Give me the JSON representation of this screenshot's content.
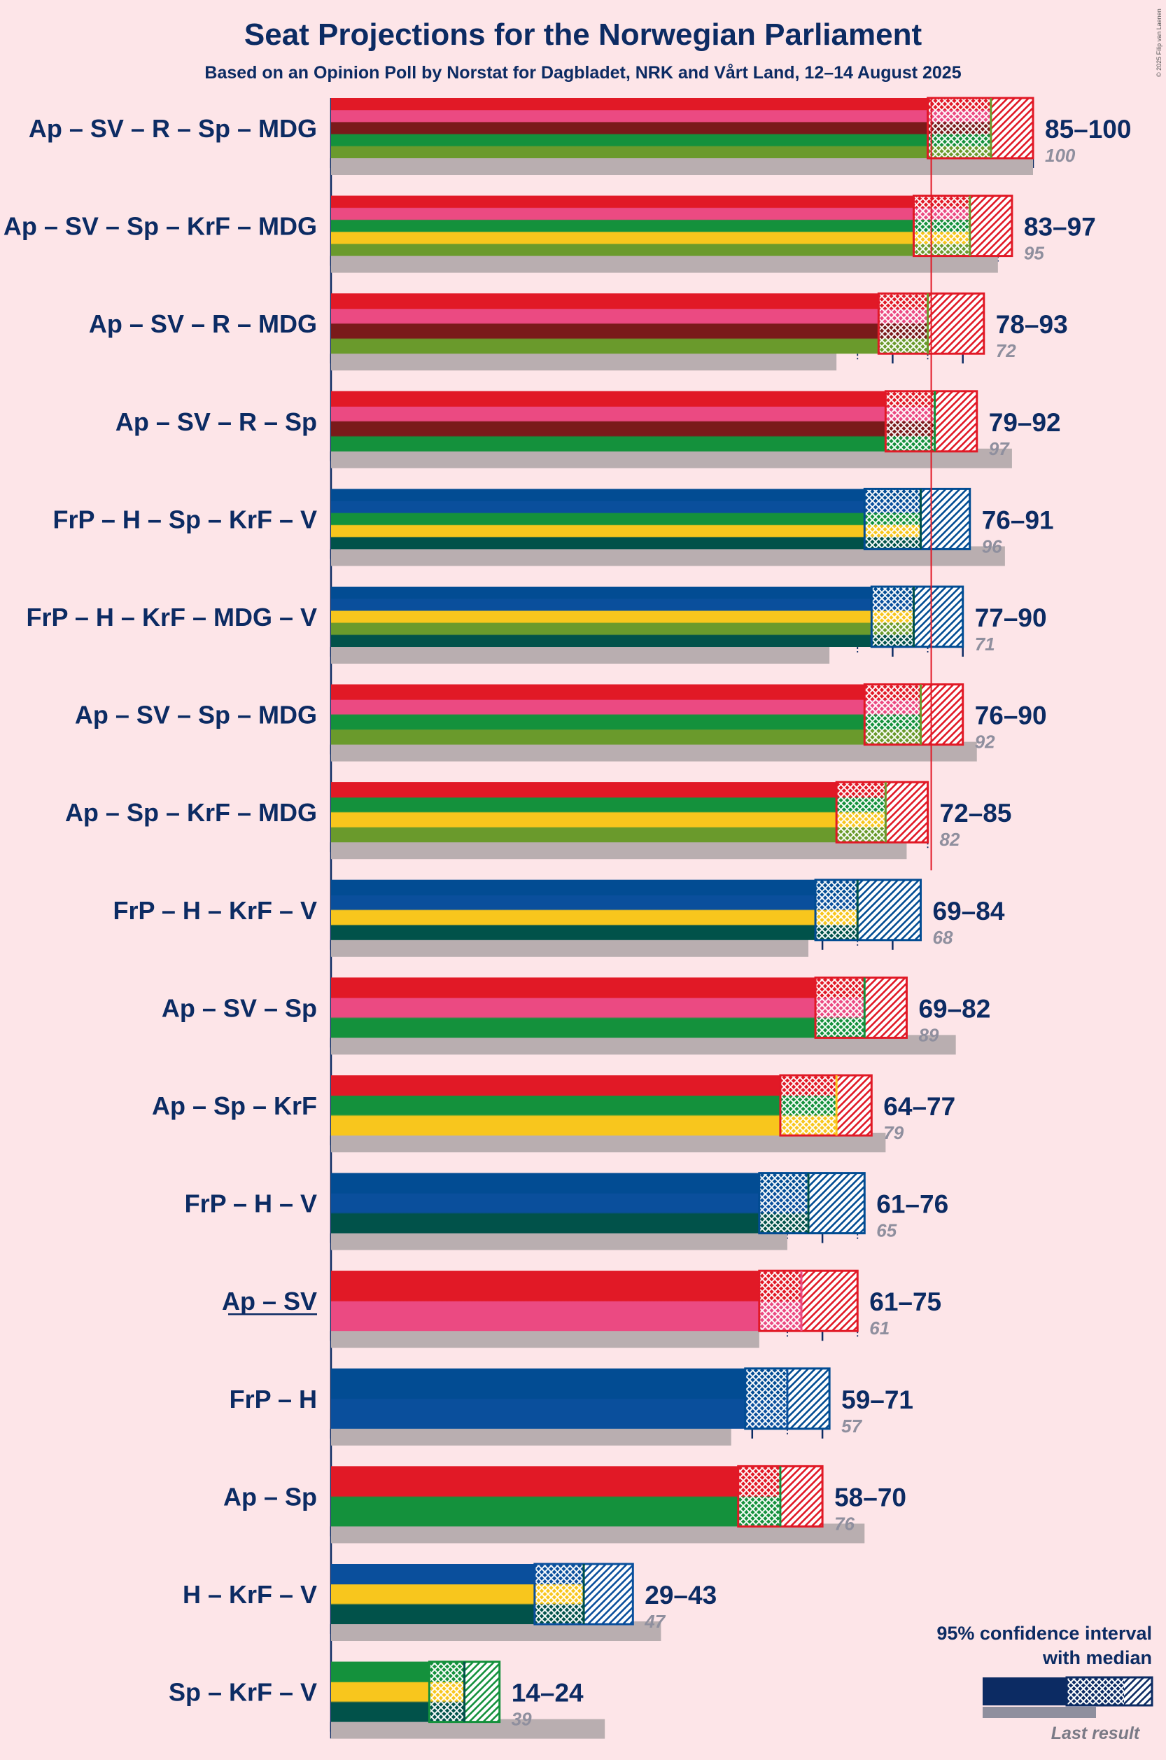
{
  "chart_data": {
    "type": "bar",
    "title": "Seat Projections for the Norwegian Parliament",
    "subtitle": "Based on an Opinion Poll by Norstat for Dagbladet, NRK and Vårt Land, 12–14 August 2025",
    "copyright": "© 2025 Filip van Laenen",
    "majority": 85,
    "xlim": [
      0,
      100
    ],
    "tick_step": 5,
    "party_colors": {
      "Ap": "#e11926",
      "SV": "#eb4a82",
      "R": "#7a1a1a",
      "Sp": "#14913c",
      "MDG": "#6a9a2c",
      "KrF": "#f8c61d",
      "FrP": "#024c93",
      "H": "#0a4f9c",
      "V": "#01524a"
    },
    "coalitions": [
      {
        "label": "Ap – SV – R – Sp – MDG",
        "parties": [
          "Ap",
          "SV",
          "R",
          "Sp",
          "MDG"
        ],
        "low": 85,
        "median": 94,
        "high": 100,
        "range": "85–100",
        "last": 100,
        "last_label": "100",
        "underline": false
      },
      {
        "label": "Ap – SV – Sp – KrF – MDG",
        "parties": [
          "Ap",
          "SV",
          "Sp",
          "KrF",
          "MDG"
        ],
        "low": 83,
        "median": 91,
        "high": 97,
        "range": "83–97",
        "last": 95,
        "last_label": "95",
        "underline": false
      },
      {
        "label": "Ap – SV – R – MDG",
        "parties": [
          "Ap",
          "SV",
          "R",
          "MDG"
        ],
        "low": 78,
        "median": 85,
        "high": 93,
        "range": "78–93",
        "last": 72,
        "last_label": "72",
        "underline": false
      },
      {
        "label": "Ap – SV – R – Sp",
        "parties": [
          "Ap",
          "SV",
          "R",
          "Sp"
        ],
        "low": 79,
        "median": 86,
        "high": 92,
        "range": "79–92",
        "last": 97,
        "last_label": "97",
        "underline": false
      },
      {
        "label": "FrP – H – Sp – KrF – V",
        "parties": [
          "FrP",
          "H",
          "Sp",
          "KrF",
          "V"
        ],
        "low": 76,
        "median": 84,
        "high": 91,
        "range": "76–91",
        "last": 96,
        "last_label": "96",
        "underline": false
      },
      {
        "label": "FrP – H – KrF – MDG – V",
        "parties": [
          "FrP",
          "H",
          "KrF",
          "MDG",
          "V"
        ],
        "low": 77,
        "median": 83,
        "high": 90,
        "range": "77–90",
        "last": 71,
        "last_label": "71",
        "underline": false
      },
      {
        "label": "Ap – SV – Sp – MDG",
        "parties": [
          "Ap",
          "SV",
          "Sp",
          "MDG"
        ],
        "low": 76,
        "median": 84,
        "high": 90,
        "range": "76–90",
        "last": 92,
        "last_label": "92",
        "underline": false
      },
      {
        "label": "Ap – Sp – KrF – MDG",
        "parties": [
          "Ap",
          "Sp",
          "KrF",
          "MDG"
        ],
        "low": 72,
        "median": 79,
        "high": 85,
        "range": "72–85",
        "last": 82,
        "last_label": "82",
        "underline": false
      },
      {
        "label": "FrP – H – KrF – V",
        "parties": [
          "FrP",
          "H",
          "KrF",
          "V"
        ],
        "low": 69,
        "median": 75,
        "high": 84,
        "range": "69–84",
        "last": 68,
        "last_label": "68",
        "underline": false
      },
      {
        "label": "Ap – SV – Sp",
        "parties": [
          "Ap",
          "SV",
          "Sp"
        ],
        "low": 69,
        "median": 76,
        "high": 82,
        "range": "69–82",
        "last": 89,
        "last_label": "89",
        "underline": false
      },
      {
        "label": "Ap – Sp – KrF",
        "parties": [
          "Ap",
          "Sp",
          "KrF"
        ],
        "low": 64,
        "median": 72,
        "high": 77,
        "range": "64–77",
        "last": 79,
        "last_label": "79",
        "underline": false
      },
      {
        "label": "FrP – H – V",
        "parties": [
          "FrP",
          "H",
          "V"
        ],
        "low": 61,
        "median": 68,
        "high": 76,
        "range": "61–76",
        "last": 65,
        "last_label": "65",
        "underline": false
      },
      {
        "label": "Ap – SV",
        "parties": [
          "Ap",
          "SV"
        ],
        "low": 61,
        "median": 67,
        "high": 75,
        "range": "61–75",
        "last": 61,
        "last_label": "61",
        "underline": true
      },
      {
        "label": "FrP – H",
        "parties": [
          "FrP",
          "H"
        ],
        "low": 59,
        "median": 65,
        "high": 71,
        "range": "59–71",
        "last": 57,
        "last_label": "57",
        "underline": false
      },
      {
        "label": "Ap – Sp",
        "parties": [
          "Ap",
          "Sp"
        ],
        "low": 58,
        "median": 64,
        "high": 70,
        "range": "58–70",
        "last": 76,
        "last_label": "76",
        "underline": false
      },
      {
        "label": "H – KrF – V",
        "parties": [
          "H",
          "KrF",
          "V"
        ],
        "low": 29,
        "median": 36,
        "high": 43,
        "range": "29–43",
        "last": 47,
        "last_label": "47",
        "underline": false
      },
      {
        "label": "Sp – KrF – V",
        "parties": [
          "Sp",
          "KrF",
          "V"
        ],
        "low": 14,
        "median": 19,
        "high": 24,
        "range": "14–24",
        "last": 39,
        "last_label": "39",
        "underline": false
      }
    ],
    "legend": {
      "title_line1": "95% confidence interval",
      "title_line2": "with median",
      "last_label": "Last result",
      "bar_color": "#0c2b63"
    }
  }
}
